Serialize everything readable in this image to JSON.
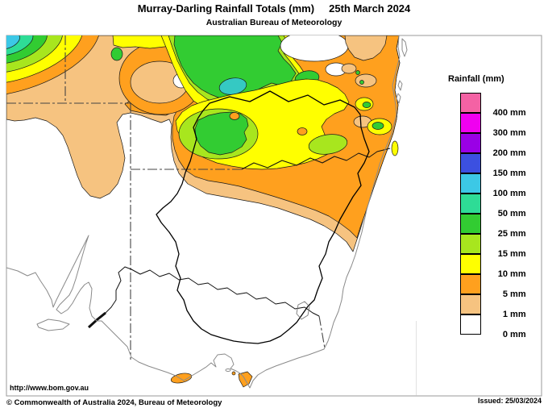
{
  "header": {
    "title": "Murray-Darling Rainfall Totals (mm)     25th March 2024",
    "subtitle": "Australian Bureau of Meteorology"
  },
  "legend": {
    "title": "Rainfall (mm)",
    "entries": [
      {
        "label": "400 mm",
        "color": "#F462A4"
      },
      {
        "label": "300 mm",
        "color": "#F000F0"
      },
      {
        "label": "200 mm",
        "color": "#9A00E6"
      },
      {
        "label": "150 mm",
        "color": "#3C50E0"
      },
      {
        "label": "100 mm",
        "color": "#3CC8E6"
      },
      {
        "label": "50 mm",
        "color": "#2EDC96"
      },
      {
        "label": "25 mm",
        "color": "#32CC32"
      },
      {
        "label": "15 mm",
        "color": "#A8E61E"
      },
      {
        "label": "10 mm",
        "color": "#FFFF00"
      },
      {
        "label": "5 mm",
        "color": "#FFA01E"
      },
      {
        "label": "1 mm",
        "color": "#F6C380"
      },
      {
        "label": "0 mm",
        "color": "#FFFFFF"
      }
    ]
  },
  "footer": {
    "url": "http://www.bom.gov.au",
    "copyright": "© Commonwealth of Australia 2024, Bureau of Meteorology",
    "issued": "Issued: 25/03/2024"
  },
  "map": {
    "region": "Murray-Darling Basin, south-eastern Australia",
    "colors": {
      "tan": "#F6C380",
      "orange": "#FFA01E",
      "yellow": "#FFFF00",
      "yellow_green": "#A8E61E",
      "green": "#32CC32",
      "teal": "#2EDC96",
      "cyan": "#3CC8E6",
      "teal_cyan": "#35C9C3"
    }
  }
}
